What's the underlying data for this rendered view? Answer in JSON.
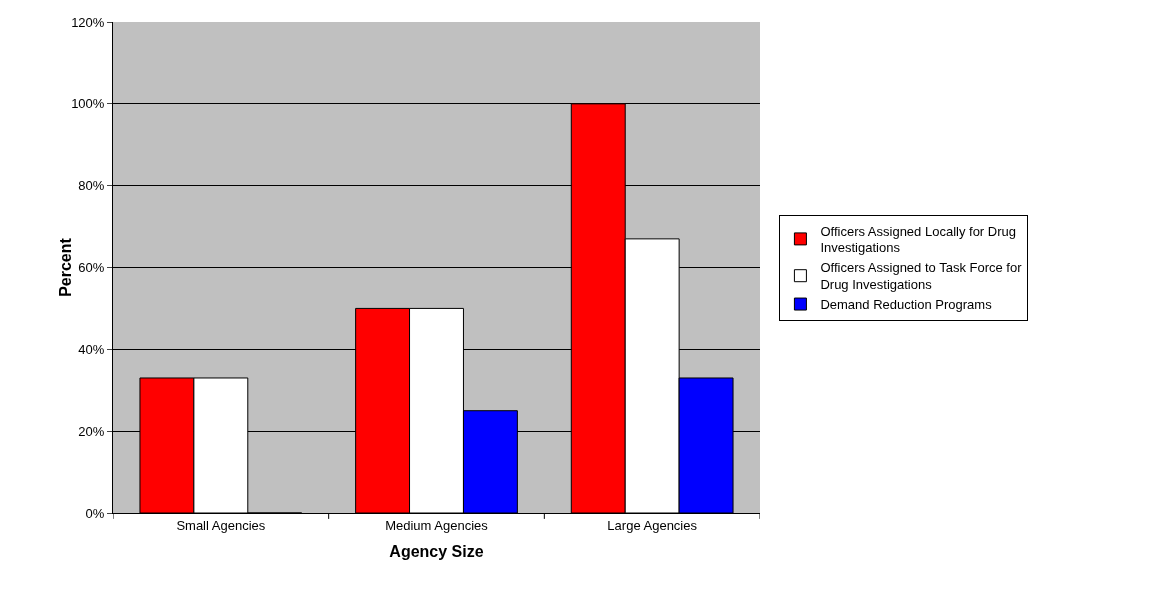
{
  "chart_data": {
    "type": "bar",
    "xlabel": "Agency Size",
    "ylabel": "Percent",
    "categories": [
      "Small Agencies",
      "Medium Agencies",
      "Large Agencies"
    ],
    "series": [
      {
        "name": "Officers Assigned Locally for Drug Investigations",
        "color": "#ff0000",
        "values": [
          33,
          50,
          100
        ]
      },
      {
        "name": "Officers Assigned to Task Force for Drug Investigations",
        "color": "#ffffff",
        "values": [
          33,
          50,
          67
        ]
      },
      {
        "name": "Demand Reduction Programs",
        "color": "#0000ff",
        "values": [
          0,
          25,
          33
        ]
      }
    ],
    "ylim": [
      0,
      120
    ],
    "yticks": [
      {
        "value": 0,
        "label": "0%"
      },
      {
        "value": 20,
        "label": "20%"
      },
      {
        "value": 40,
        "label": "40%"
      },
      {
        "value": 60,
        "label": "60%"
      },
      {
        "value": 80,
        "label": "80%"
      },
      {
        "value": 100,
        "label": "100%"
      },
      {
        "value": 120,
        "label": "120%"
      }
    ],
    "grid": "y",
    "legend": "right"
  }
}
